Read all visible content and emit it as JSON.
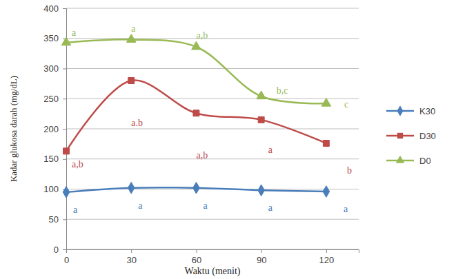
{
  "chart_data": {
    "type": "line",
    "x_label": "Waktu (menit)",
    "y_label": "Kadar glukosa darah (mg/dL)",
    "x": [
      0,
      30,
      60,
      90,
      120
    ],
    "xlim": [
      0,
      135
    ],
    "xticks": [
      0,
      30,
      60,
      90,
      120
    ],
    "ylim": [
      0,
      400
    ],
    "yticks": [
      0,
      50,
      100,
      150,
      200,
      250,
      300,
      350,
      400
    ],
    "grid": true,
    "legend": "right",
    "line_style": "smooth",
    "series": [
      {
        "name": "K30",
        "color": "#4a7ebb",
        "marker": "diamond",
        "values": [
          95,
          102,
          102,
          98,
          96
        ],
        "annotations": [
          "a",
          "a",
          "a",
          "a",
          "a"
        ]
      },
      {
        "name": "D30",
        "color": "#be4b48",
        "marker": "square",
        "values": [
          163,
          280,
          226,
          215,
          176
        ],
        "annotations": [
          "a,b",
          "a.b",
          "a,b",
          "a",
          "b"
        ]
      },
      {
        "name": "D0",
        "color": "#98b954",
        "marker": "triangle",
        "values": [
          343,
          348,
          336,
          254,
          242
        ],
        "annotations": [
          "a",
          "a",
          "a,b",
          "b,c",
          "c"
        ]
      }
    ]
  }
}
